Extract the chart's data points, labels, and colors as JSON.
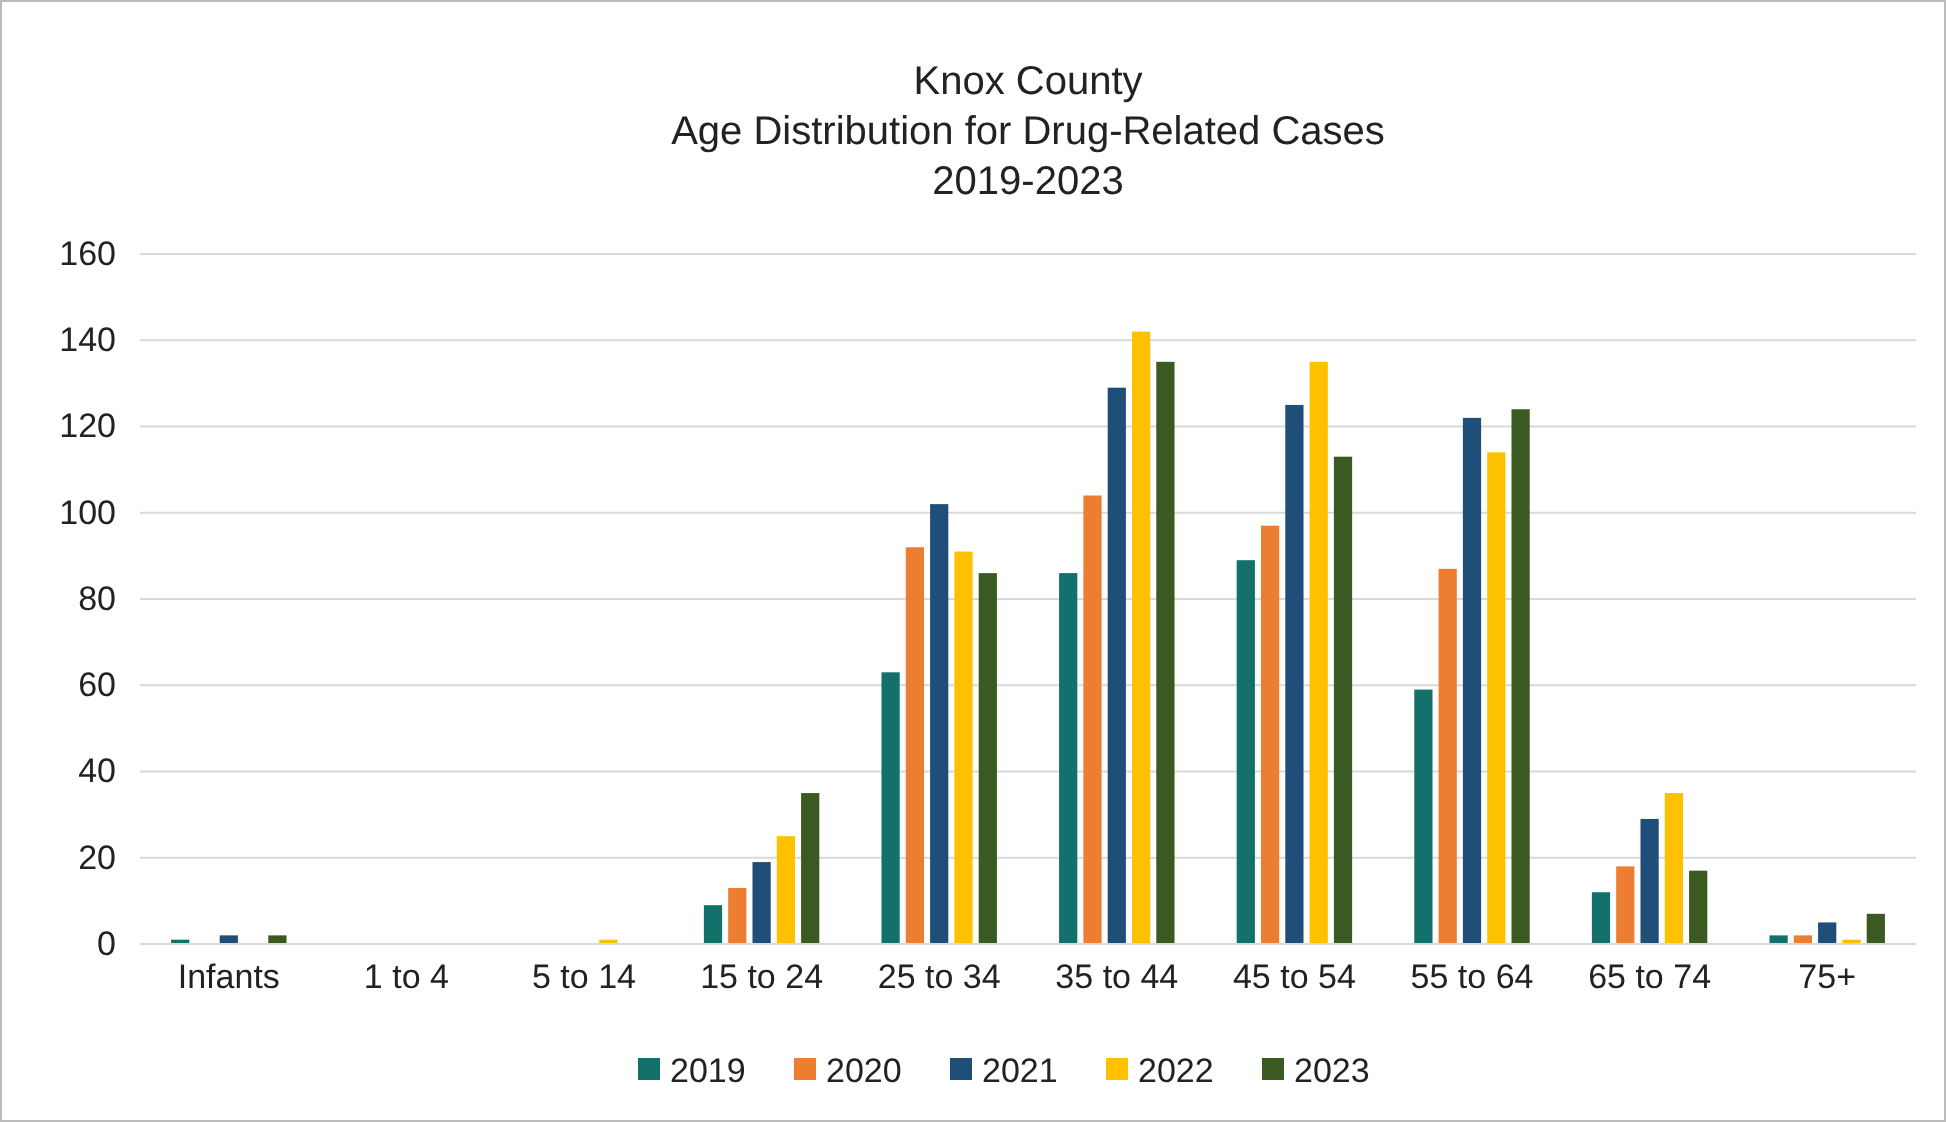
{
  "chart_data": {
    "type": "bar",
    "title": "Knox County\nAge Distribution for Drug-Related Cases\n2019-2023",
    "categories": [
      "Infants",
      "1 to 4",
      "5 to 14",
      "15 to 24",
      "25 to 34",
      "35 to 44",
      "45 to 54",
      "55 to 64",
      "65 to 74",
      "75+"
    ],
    "series": [
      {
        "name": "2019",
        "color": "#13706a",
        "values": [
          1,
          0,
          0,
          9,
          63,
          86,
          89,
          59,
          12,
          2
        ]
      },
      {
        "name": "2020",
        "color": "#ed7d31",
        "values": [
          0,
          0,
          0,
          13,
          92,
          104,
          97,
          87,
          18,
          2
        ]
      },
      {
        "name": "2021",
        "color": "#1f4e79",
        "values": [
          2,
          0,
          0,
          19,
          102,
          129,
          125,
          122,
          29,
          5
        ]
      },
      {
        "name": "2022",
        "color": "#ffc000",
        "values": [
          0,
          0,
          1,
          25,
          91,
          142,
          135,
          114,
          35,
          1
        ]
      },
      {
        "name": "2023",
        "color": "#3b5a21",
        "values": [
          2,
          0,
          0,
          35,
          86,
          135,
          113,
          124,
          17,
          7
        ]
      }
    ],
    "ylim": [
      0,
      160
    ],
    "yticks": [
      0,
      20,
      40,
      60,
      80,
      100,
      120,
      140,
      160
    ],
    "grid": "y",
    "legend": "bottom"
  }
}
